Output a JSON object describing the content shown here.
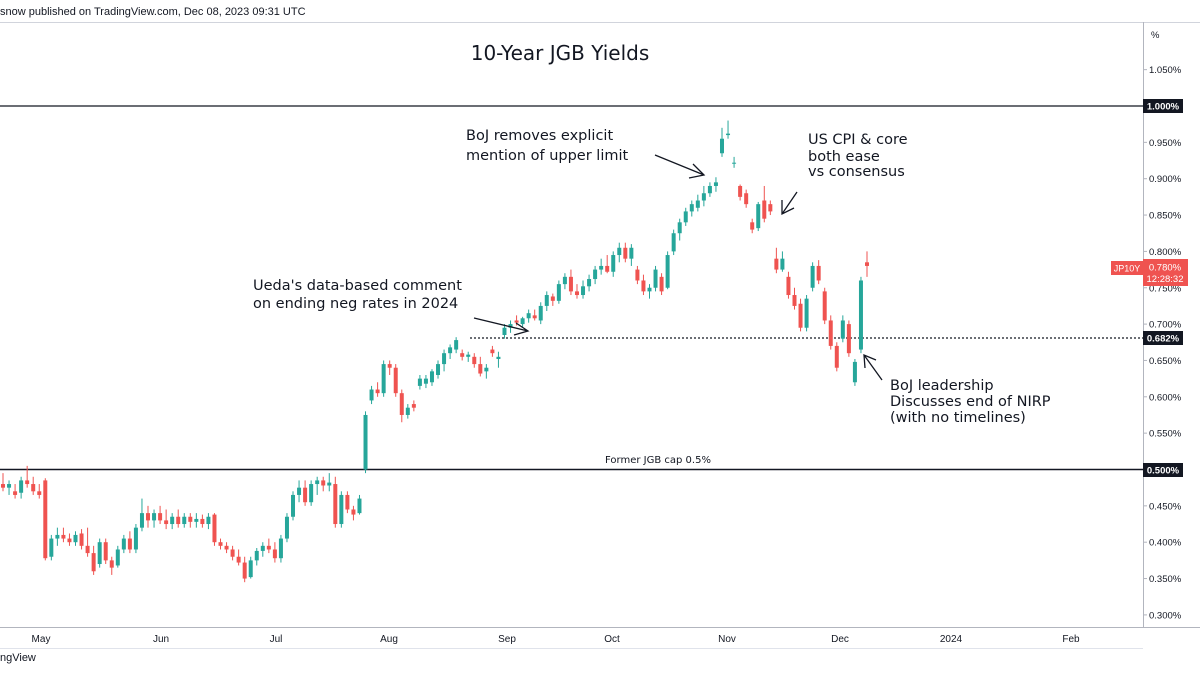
{
  "header": {
    "published": "snow published on TradingView.com, Dec 08, 2023 09:31 UTC"
  },
  "footer": {
    "brand": "ngView"
  },
  "chart_data": {
    "type": "candlestick",
    "title": "10-Year JGB Yields",
    "y_unit": "%",
    "ylim": [
      0.285,
      1.085
    ],
    "y_ticks": [
      "1.050%",
      "0.950%",
      "0.900%",
      "0.850%",
      "0.800%",
      "0.750%",
      "0.700%",
      "0.650%",
      "0.600%",
      "0.550%",
      "0.450%",
      "0.400%",
      "0.350%",
      "0.300%"
    ],
    "x_ticks": [
      "May",
      "Jun",
      "Jul",
      "Aug",
      "Sep",
      "Oct",
      "Nov",
      "Dec",
      "2024",
      "Feb"
    ],
    "colors": {
      "up": "#26a69a",
      "down": "#ef5350",
      "line": "#131722",
      "grid": "#e0e3eb"
    },
    "horizontal_lines": [
      {
        "value": 1.0,
        "label": "1.000%",
        "style": "solid"
      },
      {
        "value": 0.5,
        "label": "0.500%",
        "style": "solid",
        "caption": "Former JGB cap 0.5%"
      },
      {
        "value": 0.682,
        "label": "0.682%",
        "style": "dotted"
      }
    ],
    "last_price": {
      "symbol": "JP10Y",
      "value": "0.780%",
      "countdown": "12:28:32"
    },
    "annotations": [
      {
        "lines": [
          "BoJ removes explicit",
          "mention of upper limit"
        ]
      },
      {
        "lines": [
          "US CPI & core",
          "both ease",
          "vs consensus"
        ]
      },
      {
        "lines": [
          "Ueda's data-based comment",
          "on ending neg rates in 2024"
        ]
      },
      {
        "lines": [
          "BoJ leadership",
          "Discusses end of NIRP",
          "(with no timelines)"
        ]
      }
    ],
    "candles": [
      {
        "o": 0.48,
        "h": 0.495,
        "l": 0.47,
        "c": 0.475
      },
      {
        "o": 0.475,
        "h": 0.485,
        "l": 0.465,
        "c": 0.48
      },
      {
        "o": 0.47,
        "h": 0.48,
        "l": 0.46,
        "c": 0.465
      },
      {
        "o": 0.468,
        "h": 0.49,
        "l": 0.46,
        "c": 0.485
      },
      {
        "o": 0.485,
        "h": 0.505,
        "l": 0.475,
        "c": 0.48
      },
      {
        "o": 0.48,
        "h": 0.49,
        "l": 0.465,
        "c": 0.47
      },
      {
        "o": 0.47,
        "h": 0.48,
        "l": 0.46,
        "c": 0.465
      },
      {
        "o": 0.485,
        "h": 0.488,
        "l": 0.375,
        "c": 0.378
      },
      {
        "o": 0.38,
        "h": 0.41,
        "l": 0.375,
        "c": 0.405
      },
      {
        "o": 0.405,
        "h": 0.42,
        "l": 0.395,
        "c": 0.41
      },
      {
        "o": 0.41,
        "h": 0.42,
        "l": 0.4,
        "c": 0.405
      },
      {
        "o": 0.405,
        "h": 0.412,
        "l": 0.395,
        "c": 0.4
      },
      {
        "o": 0.4,
        "h": 0.415,
        "l": 0.395,
        "c": 0.41
      },
      {
        "o": 0.412,
        "h": 0.418,
        "l": 0.39,
        "c": 0.395
      },
      {
        "o": 0.395,
        "h": 0.42,
        "l": 0.38,
        "c": 0.385
      },
      {
        "o": 0.385,
        "h": 0.395,
        "l": 0.355,
        "c": 0.36
      },
      {
        "o": 0.37,
        "h": 0.405,
        "l": 0.365,
        "c": 0.4
      },
      {
        "o": 0.4,
        "h": 0.405,
        "l": 0.37,
        "c": 0.375
      },
      {
        "o": 0.375,
        "h": 0.38,
        "l": 0.355,
        "c": 0.365
      },
      {
        "o": 0.368,
        "h": 0.395,
        "l": 0.365,
        "c": 0.39
      },
      {
        "o": 0.39,
        "h": 0.41,
        "l": 0.385,
        "c": 0.405
      },
      {
        "o": 0.405,
        "h": 0.415,
        "l": 0.385,
        "c": 0.39
      },
      {
        "o": 0.39,
        "h": 0.425,
        "l": 0.385,
        "c": 0.42
      },
      {
        "o": 0.42,
        "h": 0.46,
        "l": 0.415,
        "c": 0.44
      },
      {
        "o": 0.44,
        "h": 0.45,
        "l": 0.42,
        "c": 0.43
      },
      {
        "o": 0.43,
        "h": 0.445,
        "l": 0.42,
        "c": 0.44
      },
      {
        "o": 0.44,
        "h": 0.45,
        "l": 0.425,
        "c": 0.43
      },
      {
        "o": 0.43,
        "h": 0.445,
        "l": 0.418,
        "c": 0.425
      },
      {
        "o": 0.425,
        "h": 0.44,
        "l": 0.418,
        "c": 0.435
      },
      {
        "o": 0.435,
        "h": 0.445,
        "l": 0.42,
        "c": 0.425
      },
      {
        "o": 0.425,
        "h": 0.44,
        "l": 0.42,
        "c": 0.435
      },
      {
        "o": 0.435,
        "h": 0.44,
        "l": 0.42,
        "c": 0.428
      },
      {
        "o": 0.428,
        "h": 0.44,
        "l": 0.42,
        "c": 0.432
      },
      {
        "o": 0.432,
        "h": 0.438,
        "l": 0.42,
        "c": 0.425
      },
      {
        "o": 0.425,
        "h": 0.44,
        "l": 0.418,
        "c": 0.435
      },
      {
        "o": 0.438,
        "h": 0.44,
        "l": 0.395,
        "c": 0.4
      },
      {
        "o": 0.4,
        "h": 0.405,
        "l": 0.39,
        "c": 0.395
      },
      {
        "o": 0.395,
        "h": 0.4,
        "l": 0.385,
        "c": 0.39
      },
      {
        "o": 0.39,
        "h": 0.395,
        "l": 0.375,
        "c": 0.38
      },
      {
        "o": 0.38,
        "h": 0.39,
        "l": 0.368,
        "c": 0.372
      },
      {
        "o": 0.372,
        "h": 0.38,
        "l": 0.345,
        "c": 0.35
      },
      {
        "o": 0.352,
        "h": 0.38,
        "l": 0.35,
        "c": 0.375
      },
      {
        "o": 0.375,
        "h": 0.392,
        "l": 0.368,
        "c": 0.388
      },
      {
        "o": 0.388,
        "h": 0.4,
        "l": 0.38,
        "c": 0.395
      },
      {
        "o": 0.395,
        "h": 0.405,
        "l": 0.385,
        "c": 0.39
      },
      {
        "o": 0.39,
        "h": 0.4,
        "l": 0.372,
        "c": 0.378
      },
      {
        "o": 0.378,
        "h": 0.41,
        "l": 0.372,
        "c": 0.405
      },
      {
        "o": 0.405,
        "h": 0.44,
        "l": 0.4,
        "c": 0.435
      },
      {
        "o": 0.435,
        "h": 0.47,
        "l": 0.43,
        "c": 0.465
      },
      {
        "o": 0.465,
        "h": 0.485,
        "l": 0.455,
        "c": 0.475
      },
      {
        "o": 0.475,
        "h": 0.485,
        "l": 0.45,
        "c": 0.455
      },
      {
        "o": 0.455,
        "h": 0.485,
        "l": 0.45,
        "c": 0.48
      },
      {
        "o": 0.48,
        "h": 0.49,
        "l": 0.465,
        "c": 0.485
      },
      {
        "o": 0.485,
        "h": 0.49,
        "l": 0.47,
        "c": 0.478
      },
      {
        "o": 0.478,
        "h": 0.495,
        "l": 0.47,
        "c": 0.482
      },
      {
        "o": 0.48,
        "h": 0.49,
        "l": 0.42,
        "c": 0.425
      },
      {
        "o": 0.425,
        "h": 0.47,
        "l": 0.42,
        "c": 0.465
      },
      {
        "o": 0.465,
        "h": 0.47,
        "l": 0.44,
        "c": 0.445
      },
      {
        "o": 0.445,
        "h": 0.45,
        "l": 0.43,
        "c": 0.438
      },
      {
        "o": 0.44,
        "h": 0.465,
        "l": 0.438,
        "c": 0.46
      },
      {
        "o": 0.5,
        "h": 0.58,
        "l": 0.495,
        "c": 0.575
      },
      {
        "o": 0.595,
        "h": 0.615,
        "l": 0.59,
        "c": 0.61
      },
      {
        "o": 0.61,
        "h": 0.62,
        "l": 0.6,
        "c": 0.605
      },
      {
        "o": 0.605,
        "h": 0.65,
        "l": 0.6,
        "c": 0.645
      },
      {
        "o": 0.645,
        "h": 0.65,
        "l": 0.63,
        "c": 0.64
      },
      {
        "o": 0.64,
        "h": 0.645,
        "l": 0.6,
        "c": 0.605
      },
      {
        "o": 0.605,
        "h": 0.61,
        "l": 0.565,
        "c": 0.575
      },
      {
        "o": 0.575,
        "h": 0.59,
        "l": 0.57,
        "c": 0.585
      },
      {
        "o": 0.59,
        "h": 0.595,
        "l": 0.58,
        "c": 0.585
      },
      {
        "o": 0.615,
        "h": 0.63,
        "l": 0.61,
        "c": 0.625
      },
      {
        "o": 0.618,
        "h": 0.63,
        "l": 0.612,
        "c": 0.625
      },
      {
        "o": 0.62,
        "h": 0.638,
        "l": 0.615,
        "c": 0.635
      },
      {
        "o": 0.63,
        "h": 0.65,
        "l": 0.625,
        "c": 0.645
      },
      {
        "o": 0.645,
        "h": 0.665,
        "l": 0.635,
        "c": 0.66
      },
      {
        "o": 0.66,
        "h": 0.672,
        "l": 0.652,
        "c": 0.668
      },
      {
        "o": 0.665,
        "h": 0.682,
        "l": 0.66,
        "c": 0.678
      },
      {
        "o": 0.66,
        "h": 0.665,
        "l": 0.65,
        "c": 0.655
      },
      {
        "o": 0.655,
        "h": 0.662,
        "l": 0.648,
        "c": 0.658
      },
      {
        "o": 0.655,
        "h": 0.66,
        "l": 0.64,
        "c": 0.645
      },
      {
        "o": 0.645,
        "h": 0.655,
        "l": 0.628,
        "c": 0.632
      },
      {
        "o": 0.635,
        "h": 0.645,
        "l": 0.625,
        "c": 0.64
      },
      {
        "o": 0.665,
        "h": 0.67,
        "l": 0.655,
        "c": 0.66
      },
      {
        "o": 0.652,
        "h": 0.662,
        "l": 0.64,
        "c": 0.655
      },
      {
        "o": 0.685,
        "h": 0.7,
        "l": 0.68,
        "c": 0.695
      },
      {
        "o": 0.695,
        "h": 0.705,
        "l": 0.688,
        "c": 0.7
      },
      {
        "o": 0.705,
        "h": 0.712,
        "l": 0.698,
        "c": 0.702
      },
      {
        "o": 0.7,
        "h": 0.71,
        "l": 0.695,
        "c": 0.708
      },
      {
        "o": 0.708,
        "h": 0.72,
        "l": 0.702,
        "c": 0.715
      },
      {
        "o": 0.712,
        "h": 0.72,
        "l": 0.705,
        "c": 0.708
      },
      {
        "o": 0.705,
        "h": 0.73,
        "l": 0.7,
        "c": 0.725
      },
      {
        "o": 0.725,
        "h": 0.745,
        "l": 0.718,
        "c": 0.74
      },
      {
        "o": 0.738,
        "h": 0.742,
        "l": 0.725,
        "c": 0.732
      },
      {
        "o": 0.732,
        "h": 0.76,
        "l": 0.728,
        "c": 0.755
      },
      {
        "o": 0.755,
        "h": 0.77,
        "l": 0.748,
        "c": 0.765
      },
      {
        "o": 0.765,
        "h": 0.775,
        "l": 0.74,
        "c": 0.745
      },
      {
        "o": 0.745,
        "h": 0.755,
        "l": 0.735,
        "c": 0.74
      },
      {
        "o": 0.74,
        "h": 0.76,
        "l": 0.735,
        "c": 0.752
      },
      {
        "o": 0.752,
        "h": 0.768,
        "l": 0.745,
        "c": 0.762
      },
      {
        "o": 0.762,
        "h": 0.78,
        "l": 0.755,
        "c": 0.775
      },
      {
        "o": 0.775,
        "h": 0.79,
        "l": 0.768,
        "c": 0.78
      },
      {
        "o": 0.78,
        "h": 0.795,
        "l": 0.77,
        "c": 0.772
      },
      {
        "o": 0.772,
        "h": 0.8,
        "l": 0.765,
        "c": 0.795
      },
      {
        "o": 0.795,
        "h": 0.812,
        "l": 0.785,
        "c": 0.805
      },
      {
        "o": 0.805,
        "h": 0.812,
        "l": 0.785,
        "c": 0.79
      },
      {
        "o": 0.79,
        "h": 0.81,
        "l": 0.78,
        "c": 0.805
      },
      {
        "o": 0.775,
        "h": 0.78,
        "l": 0.755,
        "c": 0.76
      },
      {
        "o": 0.76,
        "h": 0.768,
        "l": 0.74,
        "c": 0.745
      },
      {
        "o": 0.745,
        "h": 0.755,
        "l": 0.735,
        "c": 0.75
      },
      {
        "o": 0.75,
        "h": 0.78,
        "l": 0.745,
        "c": 0.775
      },
      {
        "o": 0.765,
        "h": 0.77,
        "l": 0.74,
        "c": 0.745
      },
      {
        "o": 0.75,
        "h": 0.8,
        "l": 0.748,
        "c": 0.795
      },
      {
        "o": 0.8,
        "h": 0.83,
        "l": 0.795,
        "c": 0.825
      },
      {
        "o": 0.825,
        "h": 0.845,
        "l": 0.815,
        "c": 0.84
      },
      {
        "o": 0.84,
        "h": 0.86,
        "l": 0.835,
        "c": 0.855
      },
      {
        "o": 0.855,
        "h": 0.87,
        "l": 0.848,
        "c": 0.865
      },
      {
        "o": 0.86,
        "h": 0.878,
        "l": 0.855,
        "c": 0.87
      },
      {
        "o": 0.87,
        "h": 0.89,
        "l": 0.862,
        "c": 0.88
      },
      {
        "o": 0.88,
        "h": 0.895,
        "l": 0.875,
        "c": 0.89
      },
      {
        "o": 0.89,
        "h": 0.902,
        "l": 0.882,
        "c": 0.895
      },
      {
        "o": 0.935,
        "h": 0.97,
        "l": 0.93,
        "c": 0.955
      },
      {
        "o": 0.96,
        "h": 0.98,
        "l": 0.955,
        "c": 0.962
      },
      {
        "o": 0.922,
        "h": 0.93,
        "l": 0.915,
        "c": 0.922
      },
      {
        "o": 0.89,
        "h": 0.892,
        "l": 0.87,
        "c": 0.875
      },
      {
        "o": 0.88,
        "h": 0.885,
        "l": 0.86,
        "c": 0.865
      },
      {
        "o": 0.84,
        "h": 0.845,
        "l": 0.825,
        "c": 0.83
      },
      {
        "o": 0.832,
        "h": 0.868,
        "l": 0.828,
        "c": 0.865
      },
      {
        "o": 0.87,
        "h": 0.89,
        "l": 0.84,
        "c": 0.845
      },
      {
        "o": 0.865,
        "h": 0.87,
        "l": 0.85,
        "c": 0.855
      },
      {
        "o": 0.79,
        "h": 0.805,
        "l": 0.77,
        "c": 0.775
      },
      {
        "o": 0.775,
        "h": 0.8,
        "l": 0.772,
        "c": 0.79
      },
      {
        "o": 0.765,
        "h": 0.772,
        "l": 0.735,
        "c": 0.74
      },
      {
        "o": 0.74,
        "h": 0.75,
        "l": 0.72,
        "c": 0.725
      },
      {
        "o": 0.728,
        "h": 0.735,
        "l": 0.69,
        "c": 0.695
      },
      {
        "o": 0.695,
        "h": 0.74,
        "l": 0.69,
        "c": 0.735
      },
      {
        "o": 0.75,
        "h": 0.785,
        "l": 0.745,
        "c": 0.78
      },
      {
        "o": 0.78,
        "h": 0.788,
        "l": 0.755,
        "c": 0.76
      },
      {
        "o": 0.745,
        "h": 0.75,
        "l": 0.7,
        "c": 0.705
      },
      {
        "o": 0.705,
        "h": 0.712,
        "l": 0.665,
        "c": 0.67
      },
      {
        "o": 0.67,
        "h": 0.675,
        "l": 0.635,
        "c": 0.64
      },
      {
        "o": 0.68,
        "h": 0.712,
        "l": 0.675,
        "c": 0.705
      },
      {
        "o": 0.7,
        "h": 0.705,
        "l": 0.655,
        "c": 0.66
      },
      {
        "o": 0.62,
        "h": 0.652,
        "l": 0.615,
        "c": 0.648
      },
      {
        "o": 0.665,
        "h": 0.765,
        "l": 0.66,
        "c": 0.76
      },
      {
        "o": 0.785,
        "h": 0.8,
        "l": 0.765,
        "c": 0.78
      }
    ]
  }
}
